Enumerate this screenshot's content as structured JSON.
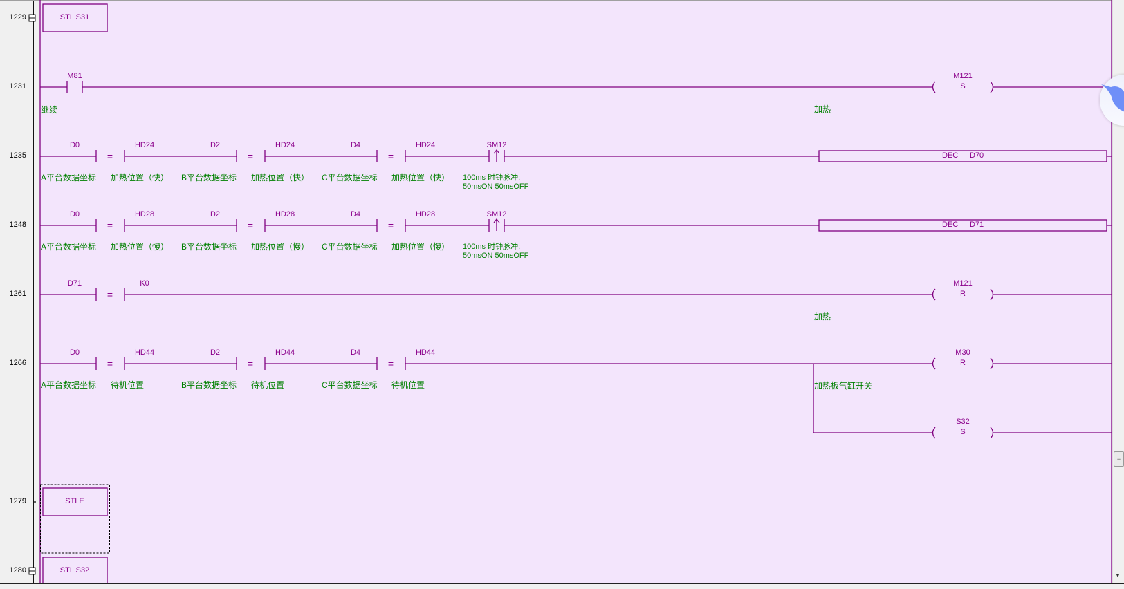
{
  "colors": {
    "canvas": "#f3e5fc",
    "wire": "#800080",
    "label": "#8b008b",
    "comment": "#008000"
  },
  "rungs": [
    {
      "line": "1229",
      "stl": "STL S31",
      "marker": "collapse"
    },
    {
      "line": "1231",
      "contacts": [
        {
          "type": "no",
          "label": "M81",
          "comment": "继续"
        }
      ],
      "coil": {
        "label": "M121",
        "op": "S",
        "comment": "加热"
      }
    },
    {
      "line": "1235",
      "compares": [
        {
          "a": "D0",
          "b": "HD24",
          "comment_a": "A平台数据坐标",
          "comment_b": "加热位置（快）"
        },
        {
          "a": "D2",
          "b": "HD24",
          "comment_a": "B平台数据坐标",
          "comment_b": "加热位置（快）"
        },
        {
          "a": "D4",
          "b": "HD24",
          "comment_a": "C平台数据坐标",
          "comment_b": "加热位置（快）"
        }
      ],
      "pulse": {
        "label": "SM12",
        "comment": "100ms 时钟脉冲:\n50msON 50msOFF"
      },
      "box": {
        "op": "DEC",
        "arg": "D70"
      }
    },
    {
      "line": "1248",
      "compares": [
        {
          "a": "D0",
          "b": "HD28",
          "comment_a": "A平台数据坐标",
          "comment_b": "加热位置（慢）"
        },
        {
          "a": "D2",
          "b": "HD28",
          "comment_a": "B平台数据坐标",
          "comment_b": "加热位置（慢）"
        },
        {
          "a": "D4",
          "b": "HD28",
          "comment_a": "C平台数据坐标",
          "comment_b": "加热位置（慢）"
        }
      ],
      "pulse": {
        "label": "SM12",
        "comment": "100ms 时钟脉冲:\n50msON 50msOFF"
      },
      "box": {
        "op": "DEC",
        "arg": "D71"
      }
    },
    {
      "line": "1261",
      "compares": [
        {
          "a": "D71",
          "b": "K0",
          "comment_a": "",
          "comment_b": ""
        }
      ],
      "coil": {
        "label": "M121",
        "op": "R",
        "comment": "加热"
      }
    },
    {
      "line": "1266",
      "compares": [
        {
          "a": "D0",
          "b": "HD44",
          "comment_a": "A平台数据坐标",
          "comment_b": "待机位置"
        },
        {
          "a": "D2",
          "b": "HD44",
          "comment_a": "B平台数据坐标",
          "comment_b": "待机位置"
        },
        {
          "a": "D4",
          "b": "HD44",
          "comment_a": "C平台数据坐标",
          "comment_b": "待机位置"
        }
      ],
      "coil": {
        "label": "M30",
        "op": "R",
        "comment": "加热板气缸开关"
      },
      "branch_coil": {
        "label": "S32",
        "op": "S"
      }
    },
    {
      "line": "1279",
      "stl": "STLE",
      "marker": "tick",
      "selected": true
    },
    {
      "line": "1280",
      "stl": "STL S32",
      "marker": "collapse"
    }
  ],
  "compare_symbol": "=",
  "scrollbar": {
    "thumb_icon": "grip-icon",
    "position_percent": 79
  }
}
